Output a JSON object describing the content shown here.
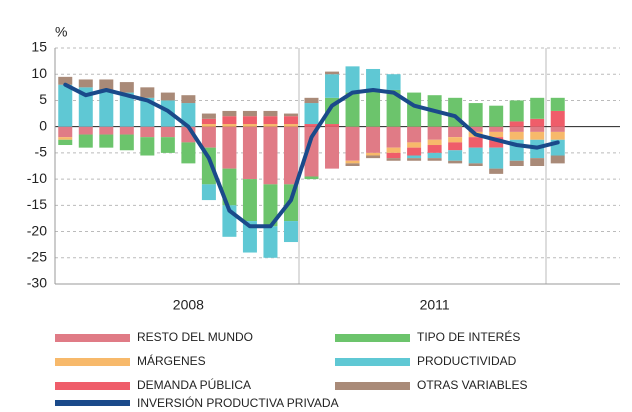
{
  "chart_data": {
    "type": "bar",
    "stacked": true,
    "unit": "%",
    "categories": [
      null,
      null,
      null,
      null,
      null,
      null,
      "2008",
      null,
      null,
      null,
      null,
      null,
      null,
      null,
      null,
      null,
      null,
      null,
      "2011",
      null,
      null,
      null,
      null,
      null,
      null
    ],
    "ylim": [
      -30,
      15
    ],
    "yticks": [
      15,
      10,
      5,
      0,
      -5,
      -10,
      -15,
      -20,
      -25,
      -30
    ],
    "grid": true,
    "series": [
      {
        "name": "RESTO DEL MUNDO",
        "color": "#e07b86",
        "values": [
          -2,
          -1.5,
          -1.5,
          -1.5,
          -2,
          -2,
          -3,
          -4,
          -8,
          -10,
          -11,
          -11,
          -9.5,
          -8,
          -6.5,
          -5,
          -4,
          -3,
          -2.5,
          -2,
          -1,
          -1,
          -1,
          -1,
          -1
        ]
      },
      {
        "name": "MÁRGENES",
        "color": "#f7b96b",
        "values": [
          -0.5,
          0,
          0,
          0,
          0,
          0,
          0,
          0.5,
          0.5,
          0.5,
          0.5,
          0.5,
          0,
          0,
          -0.5,
          -0.5,
          -1,
          -1,
          -1,
          -1,
          -1,
          -1,
          -1.5,
          -1.5,
          -1.5
        ]
      },
      {
        "name": "DEMANDA PÚBLICA",
        "color": "#ef5d6a",
        "values": [
          0,
          0,
          0,
          0,
          0,
          0,
          0,
          1,
          1.5,
          1.5,
          1.5,
          1.5,
          0.5,
          0.5,
          0,
          0,
          -1,
          -1.5,
          -1.5,
          -1.5,
          -2,
          -2,
          1,
          1.5,
          3
        ]
      },
      {
        "name": "TIPO DE INTERÉS",
        "color": "#6cc46c",
        "values": [
          -1,
          -2.5,
          -2.5,
          -3,
          -3.5,
          -3,
          -4,
          -7,
          -7,
          -8,
          -8,
          -7,
          -0.5,
          5,
          6.5,
          7,
          7,
          6.5,
          6,
          5.5,
          4.5,
          4,
          4,
          4,
          2.5
        ]
      },
      {
        "name": "PRODUCTIVIDAD",
        "color": "#5fc8d4",
        "values": [
          8,
          7.5,
          7,
          6.5,
          5.5,
          5,
          4.5,
          -3,
          -6,
          -6,
          -6,
          -4,
          4,
          4.5,
          5,
          4,
          3,
          -0.5,
          -1,
          -2,
          -3,
          -4,
          -4,
          -3.5,
          -3
        ]
      },
      {
        "name": "OTRAS VARIABLES",
        "color": "#a98a78",
        "values": [
          1.5,
          1.5,
          2,
          2,
          2,
          1.5,
          1.5,
          1,
          1,
          1,
          1,
          0.5,
          1,
          0.5,
          -0.5,
          -0.5,
          -0.5,
          -0.5,
          -0.5,
          -0.5,
          -0.5,
          -1,
          -1,
          -1.5,
          -1.5
        ]
      }
    ],
    "line": {
      "name": "INVERSIÓN PRODUCTIVA PRIVADA",
      "color": "#1a4a8a",
      "values": [
        8,
        6,
        7,
        6,
        5,
        3,
        0,
        -6,
        -16,
        -19,
        -19,
        -14,
        -2,
        4,
        6.5,
        7,
        6.5,
        4,
        3,
        2,
        -1.5,
        -2.5,
        -3.5,
        -4,
        -3
      ]
    }
  }
}
